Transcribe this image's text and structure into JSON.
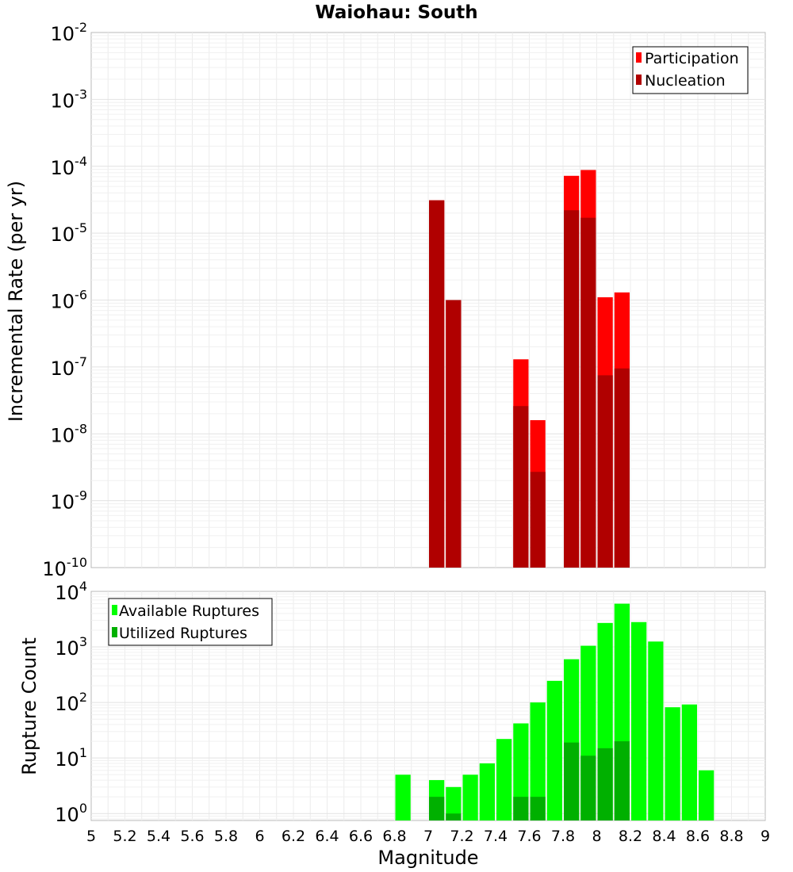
{
  "chart_data": [
    {
      "type": "bar",
      "title": "Waiohau: South",
      "ylabel": "Incremental Rate (per yr)",
      "xlabel": "",
      "yscale": "log",
      "ylim": [
        1e-10,
        0.01
      ],
      "xlim": [
        5,
        9
      ],
      "bin_width": 0.1,
      "grid": true,
      "legend_position": "top-right",
      "series": [
        {
          "name": "Participation",
          "color": "#ff0000",
          "points": [
            {
              "x": 7.05,
              "y": 3.1e-05
            },
            {
              "x": 7.15,
              "y": 1e-06
            },
            {
              "x": 7.55,
              "y": 1.3e-07
            },
            {
              "x": 7.65,
              "y": 1.6e-08
            },
            {
              "x": 7.85,
              "y": 7.2e-05
            },
            {
              "x": 7.95,
              "y": 8.8e-05
            },
            {
              "x": 8.05,
              "y": 1.1e-06
            },
            {
              "x": 8.15,
              "y": 1.3e-06
            }
          ]
        },
        {
          "name": "Nucleation",
          "color": "#b00000",
          "points": [
            {
              "x": 7.05,
              "y": 3.1e-05
            },
            {
              "x": 7.15,
              "y": 1e-06
            },
            {
              "x": 7.55,
              "y": 2.6e-08
            },
            {
              "x": 7.65,
              "y": 2.7e-09
            },
            {
              "x": 7.85,
              "y": 2.2e-05
            },
            {
              "x": 7.95,
              "y": 1.7e-05
            },
            {
              "x": 8.05,
              "y": 7.5e-08
            },
            {
              "x": 8.15,
              "y": 9.5e-08
            }
          ]
        }
      ]
    },
    {
      "type": "bar",
      "title": "",
      "ylabel": "Rupture Count",
      "xlabel": "Magnitude",
      "yscale": "log",
      "ylim": [
        0.75,
        10000
      ],
      "xlim": [
        5,
        9
      ],
      "bin_width": 0.1,
      "grid": true,
      "legend_position": "top-left",
      "x_tick_labels": [
        "5",
        "5.2",
        "5.4",
        "5.6",
        "5.8",
        "6",
        "6.2",
        "6.4",
        "6.6",
        "6.8",
        "7",
        "7.2",
        "7.4",
        "7.6",
        "7.8",
        "8",
        "8.2",
        "8.4",
        "8.6",
        "8.8",
        "9"
      ],
      "series": [
        {
          "name": "Available Ruptures",
          "color": "#00ff00",
          "points": [
            {
              "x": 6.85,
              "y": 5
            },
            {
              "x": 7.05,
              "y": 4
            },
            {
              "x": 7.15,
              "y": 3
            },
            {
              "x": 7.25,
              "y": 5
            },
            {
              "x": 7.35,
              "y": 8
            },
            {
              "x": 7.45,
              "y": 22
            },
            {
              "x": 7.55,
              "y": 42
            },
            {
              "x": 7.65,
              "y": 100
            },
            {
              "x": 7.75,
              "y": 245
            },
            {
              "x": 7.85,
              "y": 600
            },
            {
              "x": 7.95,
              "y": 1050
            },
            {
              "x": 8.05,
              "y": 2700
            },
            {
              "x": 8.15,
              "y": 6000
            },
            {
              "x": 8.25,
              "y": 2800
            },
            {
              "x": 8.35,
              "y": 1250
            },
            {
              "x": 8.45,
              "y": 82
            },
            {
              "x": 8.55,
              "y": 92
            },
            {
              "x": 8.65,
              "y": 6
            }
          ]
        },
        {
          "name": "Utilized Ruptures",
          "color": "#00b000",
          "points": [
            {
              "x": 7.05,
              "y": 2
            },
            {
              "x": 7.15,
              "y": 1
            },
            {
              "x": 7.55,
              "y": 2
            },
            {
              "x": 7.65,
              "y": 2
            },
            {
              "x": 7.85,
              "y": 19
            },
            {
              "x": 7.95,
              "y": 11
            },
            {
              "x": 8.05,
              "y": 15
            },
            {
              "x": 8.15,
              "y": 20
            }
          ]
        }
      ]
    }
  ]
}
